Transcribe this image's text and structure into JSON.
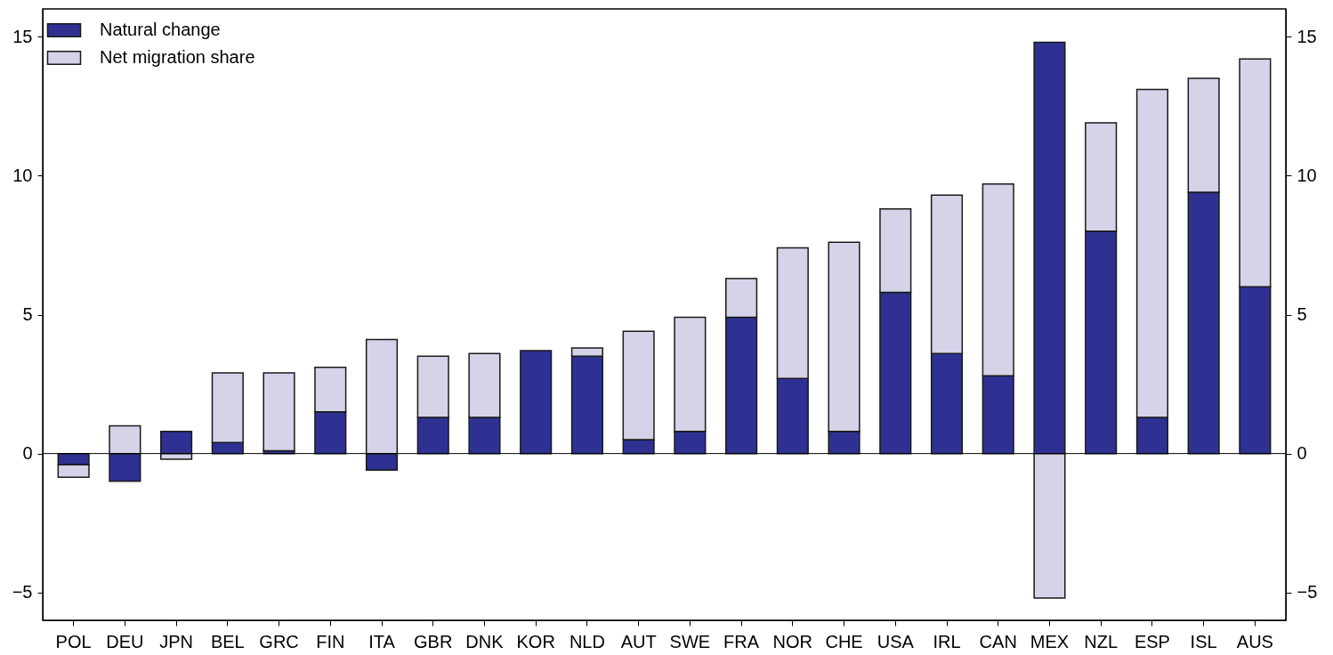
{
  "chart_data": {
    "type": "bar",
    "stacked": true,
    "categories": [
      "POL",
      "DEU",
      "JPN",
      "BEL",
      "GRC",
      "FIN",
      "ITA",
      "GBR",
      "DNK",
      "KOR",
      "NLD",
      "AUT",
      "SWE",
      "FRA",
      "NOR",
      "CHE",
      "USA",
      "IRL",
      "CAN",
      "MEX",
      "NZL",
      "ESP",
      "ISL",
      "AUS"
    ],
    "series": [
      {
        "name": "Natural change",
        "color": "#2e3192",
        "values": [
          -0.4,
          -1.0,
          0.8,
          0.4,
          0.1,
          1.5,
          -0.6,
          1.3,
          1.3,
          3.7,
          3.5,
          0.5,
          0.8,
          4.9,
          2.7,
          0.8,
          5.8,
          3.6,
          2.8,
          14.8,
          8.0,
          1.3,
          9.4,
          6.0
        ]
      },
      {
        "name": "Net migration share",
        "color": "#d5d3e8",
        "values": [
          -0.45,
          1.0,
          -0.2,
          2.5,
          2.8,
          1.6,
          4.1,
          2.2,
          2.3,
          null,
          0.3,
          3.9,
          4.1,
          1.4,
          4.7,
          6.8,
          3.0,
          5.7,
          6.9,
          -5.2,
          3.9,
          11.8,
          4.1,
          8.2
        ]
      }
    ],
    "ylim": [
      -6,
      16
    ],
    "yticks": [
      -5,
      0,
      5,
      10,
      15
    ],
    "y2lim": [
      -6,
      16
    ],
    "y2ticks": [
      -5,
      0,
      5,
      10,
      15
    ],
    "ref_lines": [
      {
        "axis": "y",
        "value": 0
      }
    ],
    "grid": false,
    "legend": "top left"
  }
}
